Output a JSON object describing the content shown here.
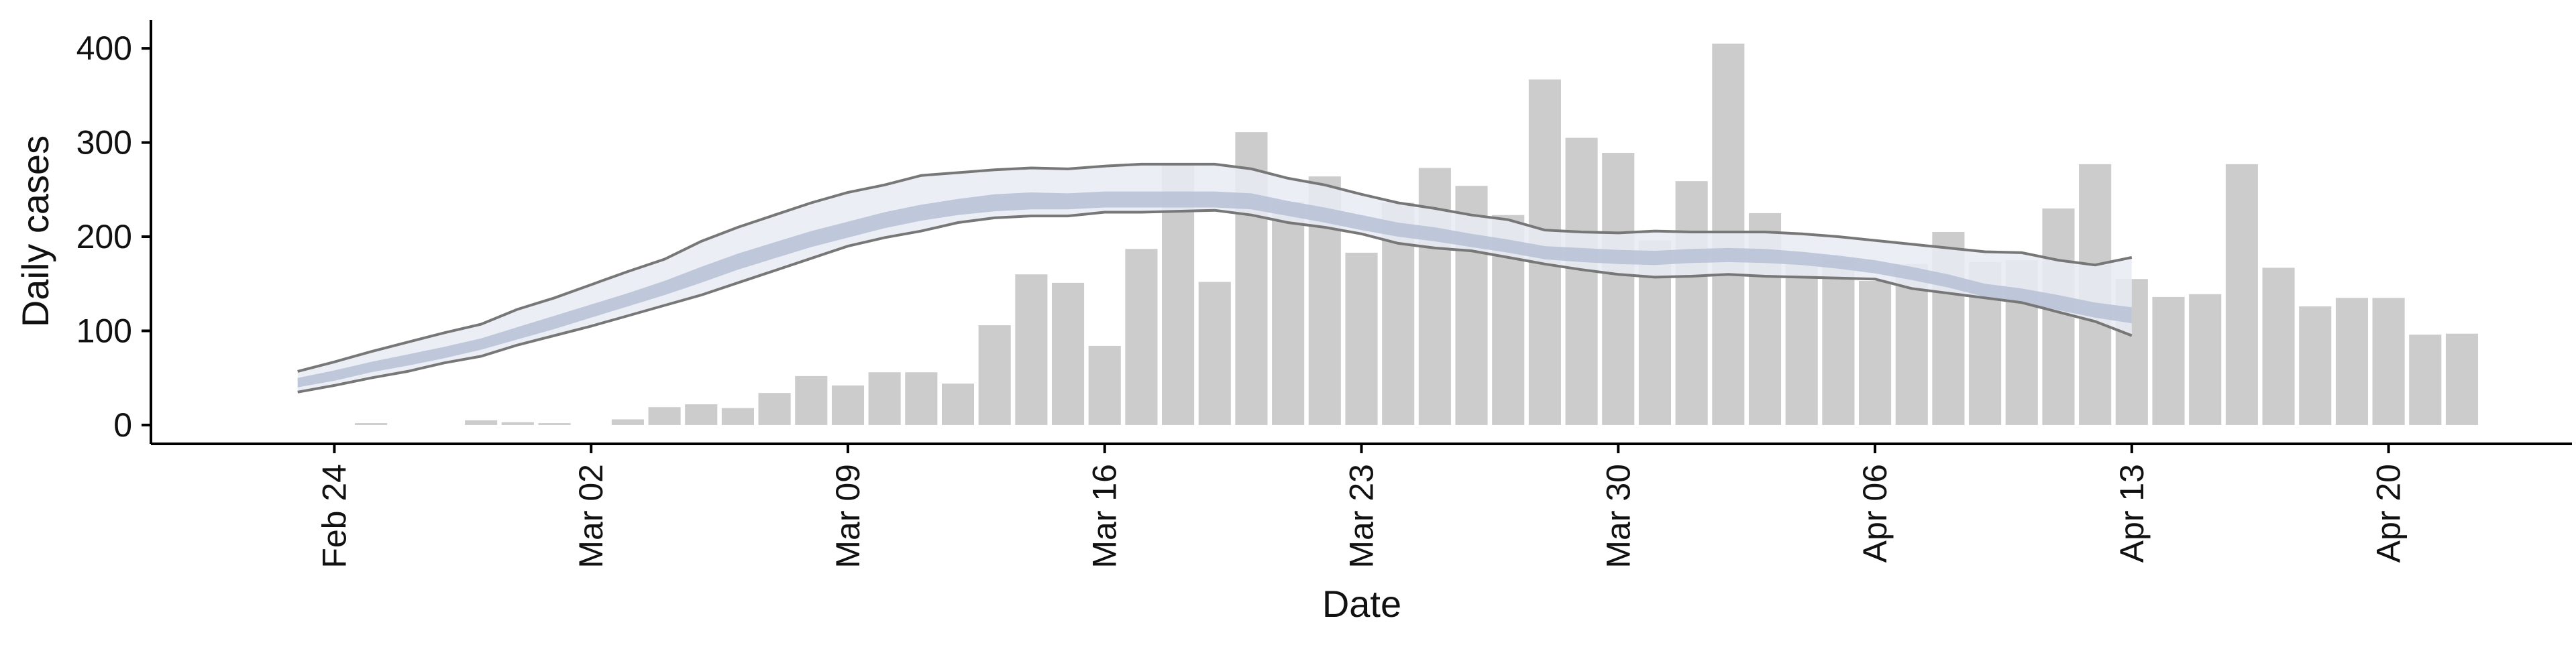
{
  "chart_data": {
    "type": "bar",
    "title": "",
    "xlabel": "Date",
    "ylabel": "Daily cases",
    "ylim": [
      -20,
      430
    ],
    "xlim": [
      "2020-02-19",
      "2020-04-25"
    ],
    "y_ticks": [
      0,
      100,
      200,
      300,
      400
    ],
    "x_ticks": [
      {
        "date": "2020-02-24",
        "label": "Feb 24"
      },
      {
        "date": "2020-03-02",
        "label": "Mar 02"
      },
      {
        "date": "2020-03-09",
        "label": "Mar 09"
      },
      {
        "date": "2020-03-16",
        "label": "Mar 16"
      },
      {
        "date": "2020-03-23",
        "label": "Mar 23"
      },
      {
        "date": "2020-03-30",
        "label": "Mar 30"
      },
      {
        "date": "2020-04-06",
        "label": "Apr 06"
      },
      {
        "date": "2020-04-13",
        "label": "Apr 13"
      },
      {
        "date": "2020-04-20",
        "label": "Apr 20"
      }
    ],
    "grid": false,
    "legend": "none",
    "colors": {
      "bars": "#cccccc",
      "outer_band": "#e8ebf3",
      "inner_band": "#b7c0d6",
      "band_lines": "#777777",
      "axis": "#000000"
    },
    "bars": {
      "name": "",
      "dates": [
        "2020-02-24",
        "2020-02-25",
        "2020-02-26",
        "2020-02-27",
        "2020-02-28",
        "2020-02-29",
        "2020-03-01",
        "2020-03-02",
        "2020-03-03",
        "2020-03-04",
        "2020-03-05",
        "2020-03-06",
        "2020-03-07",
        "2020-03-08",
        "2020-03-09",
        "2020-03-10",
        "2020-03-11",
        "2020-03-12",
        "2020-03-13",
        "2020-03-14",
        "2020-03-15",
        "2020-03-16",
        "2020-03-17",
        "2020-03-18",
        "2020-03-19",
        "2020-03-20",
        "2020-03-21",
        "2020-03-22",
        "2020-03-23",
        "2020-03-24",
        "2020-03-25",
        "2020-03-26",
        "2020-03-27",
        "2020-03-28",
        "2020-03-29",
        "2020-03-30",
        "2020-03-31",
        "2020-04-01",
        "2020-04-02",
        "2020-04-03",
        "2020-04-04",
        "2020-04-05",
        "2020-04-06",
        "2020-04-07",
        "2020-04-08",
        "2020-04-09",
        "2020-04-10",
        "2020-04-11",
        "2020-04-12",
        "2020-04-13",
        "2020-04-14",
        "2020-04-15",
        "2020-04-16",
        "2020-04-17",
        "2020-04-18",
        "2020-04-19",
        "2020-04-20",
        "2020-04-21",
        "2020-04-22"
      ],
      "values": [
        0,
        2,
        0,
        0,
        5,
        3,
        2,
        0,
        6,
        19,
        22,
        18,
        34,
        52,
        42,
        56,
        56,
        44,
        106,
        160,
        151,
        84,
        187,
        277,
        152,
        311,
        237,
        264,
        183,
        236,
        273,
        254,
        223,
        367,
        305,
        289,
        196,
        259,
        405,
        225,
        173,
        176,
        153,
        171,
        205,
        173,
        175,
        230,
        277,
        155,
        136,
        139,
        277,
        167,
        126,
        135,
        135,
        96,
        97
      ]
    },
    "bands": {
      "dates": [
        "2020-02-23",
        "2020-02-24",
        "2020-02-25",
        "2020-02-26",
        "2020-02-27",
        "2020-02-28",
        "2020-02-29",
        "2020-03-01",
        "2020-03-02",
        "2020-03-03",
        "2020-03-04",
        "2020-03-05",
        "2020-03-06",
        "2020-03-07",
        "2020-03-08",
        "2020-03-09",
        "2020-03-10",
        "2020-03-11",
        "2020-03-12",
        "2020-03-13",
        "2020-03-14",
        "2020-03-15",
        "2020-03-16",
        "2020-03-17",
        "2020-03-18",
        "2020-03-19",
        "2020-03-20",
        "2020-03-21",
        "2020-03-22",
        "2020-03-23",
        "2020-03-24",
        "2020-03-25",
        "2020-03-26",
        "2020-03-27",
        "2020-03-28",
        "2020-03-29",
        "2020-03-30",
        "2020-03-31",
        "2020-04-01",
        "2020-04-02",
        "2020-04-03",
        "2020-04-04",
        "2020-04-05",
        "2020-04-06",
        "2020-04-07",
        "2020-04-08",
        "2020-04-09",
        "2020-04-10",
        "2020-04-11",
        "2020-04-12",
        "2020-04-13"
      ],
      "outer_upper": [
        57,
        67,
        78,
        88,
        98,
        107,
        123,
        135,
        149,
        163,
        176,
        195,
        210,
        223,
        236,
        247,
        255,
        265,
        268,
        271,
        273,
        272,
        275,
        277,
        277,
        277,
        272,
        262,
        255,
        245,
        236,
        230,
        223,
        218,
        207,
        205,
        204,
        206,
        205,
        205,
        205,
        203,
        200,
        196,
        192,
        188,
        184,
        183,
        175,
        170,
        178
      ],
      "outer_lower": [
        35,
        42,
        50,
        57,
        66,
        73,
        85,
        95,
        105,
        116,
        127,
        138,
        151,
        164,
        177,
        190,
        199,
        206,
        215,
        220,
        222,
        222,
        226,
        226,
        227,
        228,
        223,
        215,
        210,
        203,
        193,
        188,
        185,
        178,
        171,
        165,
        160,
        157,
        158,
        160,
        158,
        157,
        156,
        155,
        145,
        140,
        135,
        130,
        120,
        110,
        95
      ],
      "inner_upper": [
        50,
        58,
        67,
        75,
        83,
        92,
        104,
        116,
        128,
        140,
        153,
        168,
        182,
        194,
        206,
        216,
        226,
        234,
        240,
        245,
        247,
        246,
        248,
        248,
        248,
        248,
        246,
        238,
        231,
        223,
        215,
        210,
        203,
        197,
        190,
        188,
        186,
        185,
        187,
        188,
        187,
        184,
        180,
        175,
        168,
        160,
        150,
        145,
        138,
        130,
        125
      ],
      "inner_lower": [
        40,
        47,
        56,
        63,
        71,
        80,
        91,
        102,
        114,
        126,
        138,
        151,
        165,
        177,
        189,
        199,
        209,
        217,
        223,
        227,
        229,
        229,
        231,
        231,
        231,
        231,
        229,
        222,
        215,
        207,
        200,
        195,
        189,
        183,
        176,
        173,
        171,
        170,
        172,
        173,
        172,
        170,
        166,
        161,
        154,
        146,
        136,
        130,
        122,
        114,
        108
      ],
      "extra_line_upper": [
        null,
        null,
        null,
        null,
        null,
        null,
        null,
        null,
        null,
        null,
        null,
        null,
        null,
        null,
        null,
        null,
        null,
        null,
        null,
        null,
        null,
        null,
        null,
        null,
        null,
        null,
        null,
        null,
        null,
        null,
        null,
        null,
        null,
        null,
        null,
        null,
        null,
        null,
        null,
        null,
        null,
        null,
        null,
        null,
        null,
        null,
        null,
        null,
        null,
        null,
        null
      ]
    }
  }
}
